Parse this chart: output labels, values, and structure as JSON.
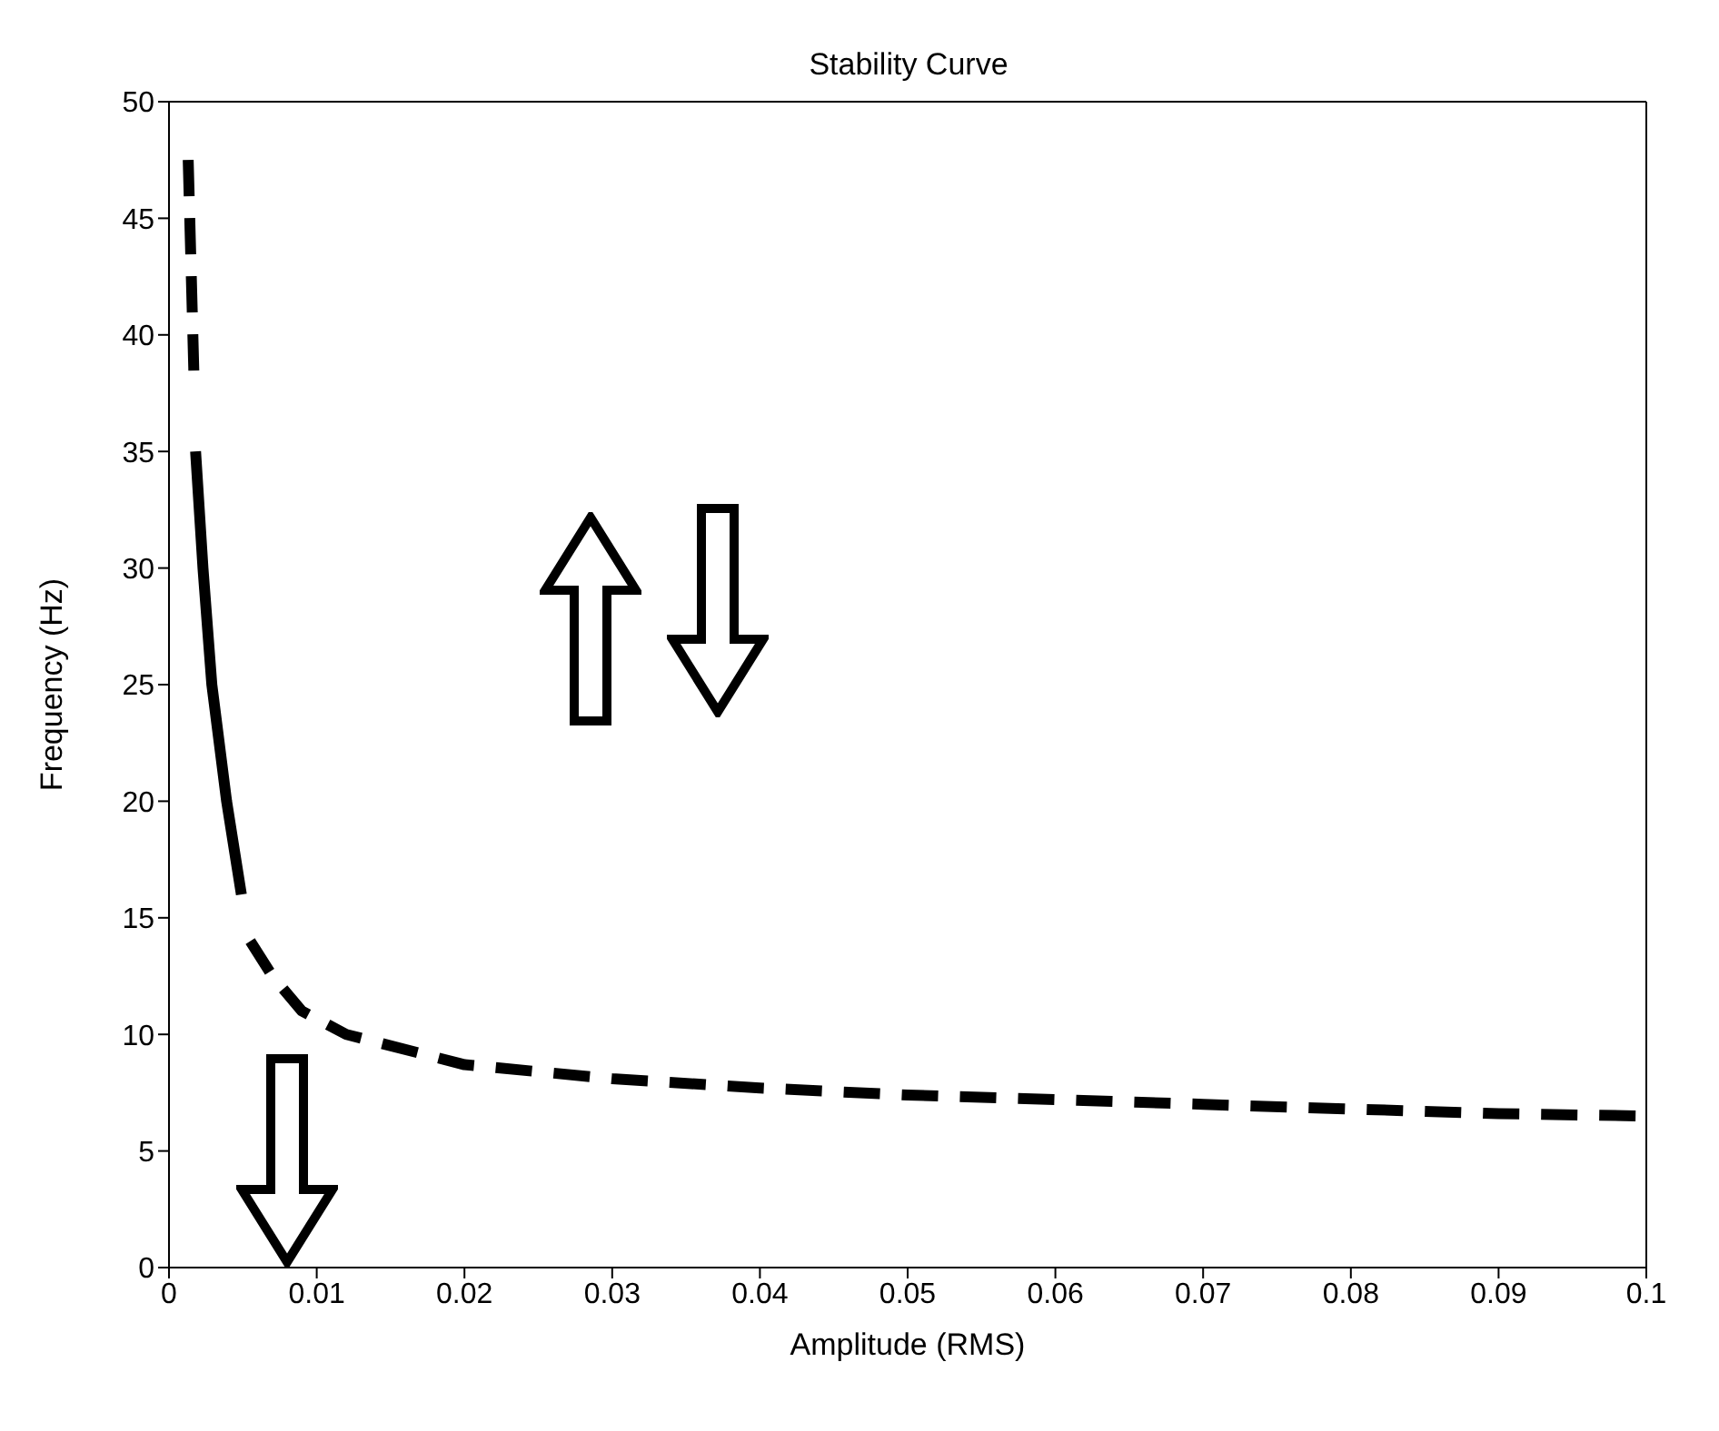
{
  "chart_data": {
    "type": "line",
    "title": "Stability Curve",
    "xlabel": "Amplitude (RMS)",
    "ylabel": "Frequency (Hz)",
    "xlim": [
      0,
      0.1
    ],
    "xticks": [
      0,
      0.01,
      0.02,
      0.03,
      0.04,
      0.05,
      0.06,
      0.07,
      0.08,
      0.09,
      0.1
    ],
    "ylim": [
      0,
      50
    ],
    "yticks": [
      0,
      5,
      10,
      15,
      20,
      25,
      30,
      35,
      40,
      45,
      50
    ],
    "grid": false,
    "legend": false,
    "marker": "none",
    "series": [
      {
        "color": "#000000",
        "line_style": "dashed",
        "x": [
          0.0013,
          0.0017
        ],
        "values": [
          47.5,
          38
        ]
      },
      {
        "color": "#000000",
        "line_style": "solid",
        "x": [
          0.0018,
          0.0023,
          0.0029,
          0.0039,
          0.0049
        ],
        "values": [
          35,
          30,
          25,
          20,
          16
        ]
      },
      {
        "color": "#000000",
        "line_style": "dashed",
        "x": [
          0.0055,
          0.007,
          0.009,
          0.012,
          0.02,
          0.03,
          0.04,
          0.05,
          0.06,
          0.07,
          0.08,
          0.09,
          0.1
        ],
        "values": [
          14,
          12.5,
          11,
          10,
          8.7,
          8.1,
          7.7,
          7.4,
          7.2,
          7,
          6.8,
          6.6,
          6.5
        ]
      }
    ]
  }
}
